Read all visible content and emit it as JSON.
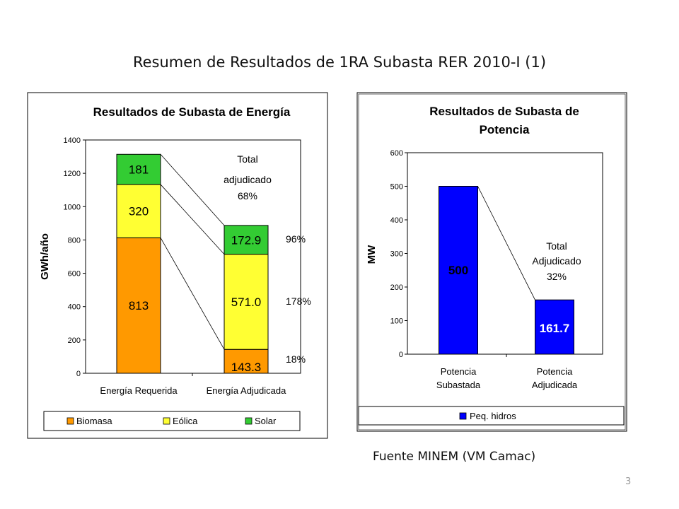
{
  "slide": {
    "title": "Resumen de Resultados de  1RA Subasta RER 2010-I (1)",
    "source": "Fuente MINEM (VM Camac)",
    "page_number": "3"
  },
  "chart_data": [
    {
      "type": "bar",
      "stacked": true,
      "title": "Resultados de Subasta de Energía",
      "ylabel": "GWh/año",
      "ylim": [
        0,
        1400
      ],
      "yticks": [
        0,
        200,
        400,
        600,
        800,
        1000,
        1200,
        1400
      ],
      "categories": [
        "Energía Requerida",
        "Energía Adjudicada"
      ],
      "series": [
        {
          "name": "Biomasa",
          "color": "#FF9900",
          "values": [
            813,
            143.3
          ],
          "labels": [
            "813",
            "143.3"
          ]
        },
        {
          "name": "Eólica",
          "color": "#FFFF33",
          "values": [
            320,
            571.0
          ],
          "labels": [
            "320",
            "571.0"
          ]
        },
        {
          "name": "Solar",
          "color": "#33CC33",
          "values": [
            181,
            172.9
          ],
          "labels": [
            "181",
            "172.9"
          ]
        }
      ],
      "annotations": {
        "total": [
          "Total",
          "adjudicado",
          "68%"
        ],
        "percentages": [
          "96%",
          "178%",
          "18%"
        ]
      },
      "legend": "bottom",
      "grid": false
    },
    {
      "type": "bar",
      "title_lines": [
        "Resultados de Subasta de",
        "Potencia"
      ],
      "ylabel": "MW",
      "ylim": [
        0,
        600
      ],
      "yticks": [
        0,
        100,
        200,
        300,
        400,
        500,
        600
      ],
      "categories": [
        [
          "Potencia",
          "Subastada"
        ],
        [
          "Potencia",
          "Adjudicada"
        ]
      ],
      "series": [
        {
          "name": "Peq. hidros",
          "color": "#0000FF",
          "values": [
            500,
            161.7
          ],
          "labels": [
            "500",
            "161.7"
          ]
        }
      ],
      "annotations": {
        "total": [
          "Total",
          "Adjudicado",
          "32%"
        ]
      },
      "legend": "bottom",
      "grid": false
    }
  ]
}
